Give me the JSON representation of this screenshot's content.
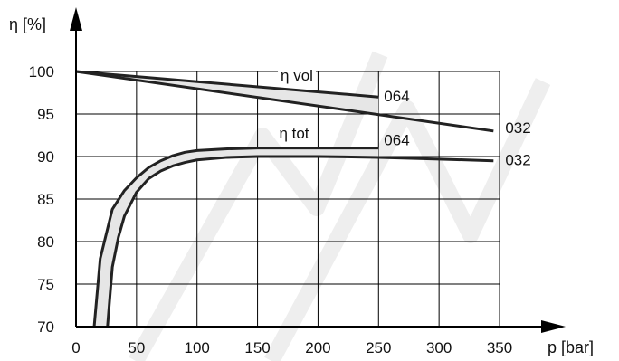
{
  "chart_data": {
    "type": "line",
    "ylabel": "η [%]",
    "xlabel": "p [bar]",
    "xlim": [
      0,
      350
    ],
    "ylim": [
      70,
      100
    ],
    "x_ticks": [
      0,
      50,
      100,
      150,
      200,
      250,
      300,
      350
    ],
    "y_ticks": [
      70,
      75,
      80,
      85,
      90,
      95,
      100
    ],
    "grid": true,
    "groups": [
      {
        "name": "η vol",
        "series": [
          {
            "name": "064",
            "x": [
              0,
              250
            ],
            "y": [
              100,
              97
            ]
          },
          {
            "name": "032",
            "x": [
              0,
              345
            ],
            "y": [
              100,
              93
            ]
          }
        ]
      },
      {
        "name": "η tot",
        "series": [
          {
            "name": "064",
            "x": [
              15,
              20,
              30,
              40,
              50,
              60,
              70,
              80,
              90,
              100,
              125,
              150,
              200,
              250
            ],
            "y": [
              70,
              78,
              83.8,
              86,
              87.5,
              88.7,
              89.5,
              90.1,
              90.5,
              90.7,
              90.9,
              91,
              91,
              91
            ]
          },
          {
            "name": "032",
            "x": [
              26,
              30,
              35,
              40,
              50,
              60,
              70,
              80,
              90,
              100,
              125,
              150,
              200,
              250,
              300,
              345
            ],
            "y": [
              70,
              77,
              80.5,
              83,
              85.8,
              87.4,
              88.3,
              88.9,
              89.3,
              89.6,
              89.9,
              90,
              90,
              89.9,
              89.7,
              89.5
            ]
          }
        ]
      }
    ]
  }
}
